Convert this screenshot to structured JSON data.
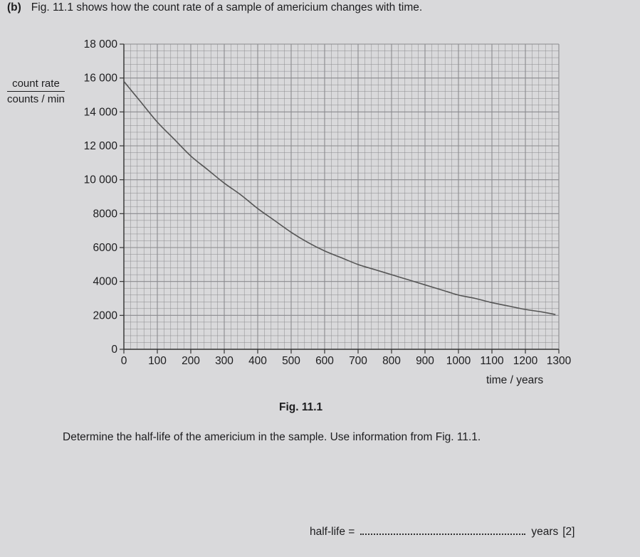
{
  "question": {
    "part_label": "(b)",
    "text": "Fig. 11.1 shows how the count rate of a sample of americium changes with time.",
    "figure_caption": "Fig. 11.1",
    "instruction": "Determine the half-life of the americium in the sample. Use information from Fig. 11.1.",
    "answer_label": "half-life =",
    "answer_unit": "years",
    "marks": "[2]"
  },
  "chart_data": {
    "type": "line",
    "title": "",
    "ylabel_top": "count rate",
    "ylabel_bottom": "counts / min",
    "xlabel": "time / years",
    "xlim": [
      0,
      1300
    ],
    "ylim": [
      0,
      18000
    ],
    "x_ticks": [
      0,
      100,
      200,
      300,
      400,
      500,
      600,
      700,
      800,
      900,
      1000,
      1100,
      1200,
      1300
    ],
    "x_tick_labels": [
      "0",
      "100",
      "200",
      "300",
      "400",
      "500",
      "600",
      "700",
      "800",
      "900",
      "1000",
      "1100",
      "1200",
      "1300"
    ],
    "y_ticks": [
      0,
      2000,
      4000,
      6000,
      8000,
      10000,
      12000,
      14000,
      16000,
      18000
    ],
    "y_tick_labels": [
      "0",
      "2000",
      "4000",
      "6000",
      "8000",
      "10 000",
      "12 000",
      "14 000",
      "16 000",
      "18 000"
    ],
    "grid": true,
    "minor_grid_divisions": 5,
    "line_color": "#555555",
    "grid_color": "#8a8a8e",
    "series": [
      {
        "x": [
          0,
          50,
          100,
          150,
          200,
          250,
          300,
          350,
          400,
          450,
          500,
          550,
          600,
          650,
          700,
          750,
          800,
          850,
          900,
          950,
          1000,
          1050,
          1100,
          1150,
          1200,
          1250,
          1290
        ],
        "values": [
          15800,
          14600,
          13400,
          12400,
          11400,
          10600,
          9800,
          9100,
          8300,
          7600,
          6900,
          6300,
          5800,
          5400,
          5000,
          4700,
          4400,
          4100,
          3800,
          3500,
          3200,
          3000,
          2750,
          2550,
          2350,
          2200,
          2050
        ]
      }
    ]
  }
}
